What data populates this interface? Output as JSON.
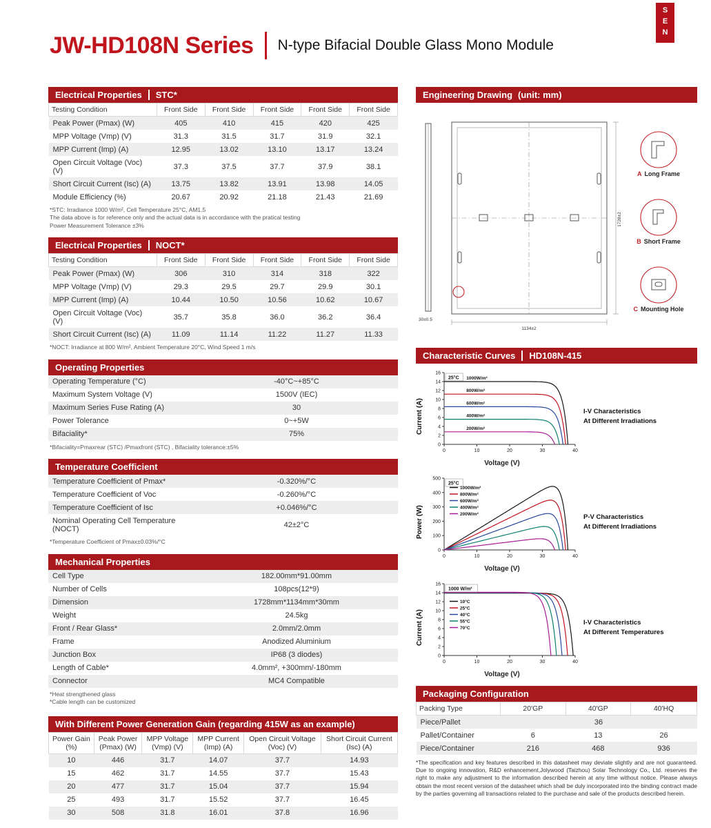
{
  "brand": {
    "corner_tab": "SEN"
  },
  "title": {
    "series": "JW-HD108N Series",
    "subtitle": "N-type Bifacial Double Glass Mono Module"
  },
  "stc": {
    "header": "Electrical Properties",
    "tag": "STC*",
    "table": {
      "cols": [
        "Testing Condition",
        "Front Side",
        "Front Side",
        "Front Side",
        "Front Side",
        "Front Side"
      ],
      "rows": [
        [
          "Peak Power (Pmax) (W)",
          "405",
          "410",
          "415",
          "420",
          "425"
        ],
        [
          "MPP Voltage (Vmp) (V)",
          "31.3",
          "31.5",
          "31.7",
          "31.9",
          "32.1"
        ],
        [
          "MPP Current (Imp) (A)",
          "12.95",
          "13.02",
          "13.10",
          "13.17",
          "13.24"
        ],
        [
          "Open Circuit Voltage (Voc) (V)",
          "37.3",
          "37.5",
          "37.7",
          "37.9",
          "38.1"
        ],
        [
          "Short Circuit Current (Isc) (A)",
          "13.75",
          "13.82",
          "13.91",
          "13.98",
          "14.05"
        ],
        [
          "Module Efficiency (%)",
          "20.67",
          "20.92",
          "21.18",
          "21.43",
          "21.69"
        ]
      ]
    },
    "footnotes": [
      "*STC: Irradiance 1000 W/m², Cell Temperature 25°C, AM1.5",
      "The data above is for reference only and the actual data is in accordance with the pratical testing",
      "Power Measurement Tolerance ±3%"
    ]
  },
  "noct": {
    "header": "Electrical Properties",
    "tag": "NOCT*",
    "table": {
      "cols": [
        "Testing Condition",
        "Front Side",
        "Front Side",
        "Front Side",
        "Front Side",
        "Front Side"
      ],
      "rows": [
        [
          "Peak Power (Pmax) (W)",
          "306",
          "310",
          "314",
          "318",
          "322"
        ],
        [
          "MPP Voltage (Vmp) (V)",
          "29.3",
          "29.5",
          "29.7",
          "29.9",
          "30.1"
        ],
        [
          "MPP Current (Imp) (A)",
          "10.44",
          "10.50",
          "10.56",
          "10.62",
          "10.67"
        ],
        [
          "Open Circuit Voltage (Voc) (V)",
          "35.7",
          "35.8",
          "36.0",
          "36.2",
          "36.4"
        ],
        [
          "Short Circuit Current (Isc) (A)",
          "11.09",
          "11.14",
          "11.22",
          "11.27",
          "11.33"
        ]
      ]
    },
    "footnotes": [
      "*NOCT: Irradiance at 800 W/m², Ambient Temperature 20°C, Wind Speed 1 m/s"
    ]
  },
  "operating": {
    "header": "Operating Properties",
    "table": {
      "rows": [
        [
          "Operating Temperature (°C)",
          "-40°C~+85°C"
        ],
        [
          "Maximum System Voltage (V)",
          "1500V (IEC)"
        ],
        [
          "Maximum Series Fuse Rating (A)",
          "30"
        ],
        [
          "Power Tolerance",
          "0~+5W"
        ],
        [
          "Bifaciality*",
          "75%"
        ]
      ]
    },
    "footnotes": [
      "*Bifaciality=Pmaxrear (STC) /Pmaxfront (STC) ,  Bifaciality tolerance:±5%"
    ]
  },
  "temp_coeff": {
    "header": "Temperature Coefficient",
    "table": {
      "rows": [
        [
          "Temperature Coefficient of Pmax*",
          "-0.320%/°C"
        ],
        [
          "Temperature Coefficient of Voc",
          "-0.260%/°C"
        ],
        [
          "Temperature Coefficient of Isc",
          "+0.046%/°C"
        ],
        [
          "Nominal Operating Cell Temperature (NOCT)",
          "42±2°C"
        ]
      ]
    },
    "footnotes": [
      "*Temperature Coefficient of Pmax±0.03%/°C"
    ]
  },
  "mechanical": {
    "header": "Mechanical Properties",
    "table": {
      "rows": [
        [
          "Cell Type",
          "182.00mm*91.00mm"
        ],
        [
          "Number of Cells",
          "108pcs(12*9)"
        ],
        [
          "Dimension",
          "1728mm*1134mm*30mm"
        ],
        [
          "Weight",
          "24.5kg"
        ],
        [
          "Front / Rear Glass*",
          "2.0mm/2.0mm"
        ],
        [
          "Frame",
          "Anodized Aluminium"
        ],
        [
          "Junction Box",
          "IP68 (3 diodes)"
        ],
        [
          "Length of Cable*",
          "4.0mm², +300mm/-180mm"
        ],
        [
          "Connector",
          "MC4 Compatible"
        ]
      ]
    },
    "footnotes": [
      "*Heat strengthened glass",
      "*Cable length can be customized"
    ]
  },
  "power_gain": {
    "header": "With Different Power Generation Gain (regarding 415W as an example)",
    "table": {
      "cols": [
        "Power Gain\n(%)",
        "Peak Power\n(Pmax) (W)",
        "MPP Voltage\n(Vmp) (V)",
        "MPP Current\n(Imp) (A)",
        "Open Circuit Voltage\n(Voc) (V)",
        "Short Circuit Current\n(Isc) (A)"
      ],
      "rows": [
        [
          "10",
          "446",
          "31.7",
          "14.07",
          "37.7",
          "14.93"
        ],
        [
          "15",
          "462",
          "31.7",
          "14.55",
          "37.7",
          "15.43"
        ],
        [
          "20",
          "477",
          "31.7",
          "15.04",
          "37.7",
          "15.94"
        ],
        [
          "25",
          "493",
          "31.7",
          "15.52",
          "37.7",
          "16.45"
        ],
        [
          "30",
          "508",
          "31.8",
          "16.01",
          "37.8",
          "16.96"
        ]
      ]
    }
  },
  "drawing": {
    "header": "Engineering Drawing",
    "tag": "(unit: mm)",
    "dim_height": "1728±2",
    "dim_width": "1134±2",
    "dim_depth": "30±0.5",
    "details": [
      {
        "letter": "A",
        "text": "Long Frame"
      },
      {
        "letter": "B",
        "text": "Short Frame"
      },
      {
        "letter": "C",
        "text": "Mounting Hole"
      }
    ]
  },
  "curves": {
    "header": "Characteristic Curves",
    "tag": "HD108N-415",
    "charts": [
      {
        "type": "iv",
        "title": "I-V Characteristics At Different Irradiations",
        "side1": "I-V Characteristics",
        "side2": "At Different Irradiations",
        "xlabel": "Voltage (V)",
        "ylabel": "Current (A)",
        "xmax": 40,
        "xstep": 10,
        "ymax": 16,
        "ystep": 2,
        "corner": "25°C",
        "legend": "curve",
        "legend_y": 16,
        "series": [
          {
            "label": "1000W/m²",
            "color": "#151515",
            "isc": 14.0,
            "voc": 37.8
          },
          {
            "label": "800W/m²",
            "color": "#c1121f",
            "isc": 11.2,
            "voc": 37.1
          },
          {
            "label": "600W/m²",
            "color": "#27489d",
            "isc": 8.4,
            "voc": 36.3
          },
          {
            "label": "400W/m²",
            "color": "#0b7f6e",
            "isc": 5.6,
            "voc": 35.2
          },
          {
            "label": "200W/m²",
            "color": "#a81a96",
            "isc": 2.8,
            "voc": 33.8
          }
        ]
      },
      {
        "type": "pv",
        "title": "P-V Characteristics At Different Irradiations",
        "side1": "P-V Characteristics",
        "side2": "At Different Irradiations",
        "xlabel": "Voltage (V)",
        "ylabel": "Power (W)",
        "xmax": 40,
        "xstep": 10,
        "ymax": 500,
        "ystep": 100,
        "corner": "25°C",
        "legend": "swatch",
        "legend_y": 16,
        "series": [
          {
            "label": "1000W/m²",
            "color": "#151515",
            "isc": 14.0,
            "voc": 37.8
          },
          {
            "label": "800W/m²",
            "color": "#c1121f",
            "isc": 11.2,
            "voc": 37.1
          },
          {
            "label": "600W/m²",
            "color": "#27489d",
            "isc": 8.4,
            "voc": 36.3
          },
          {
            "label": "400W/m²",
            "color": "#0b7f6e",
            "isc": 5.6,
            "voc": 35.2
          },
          {
            "label": "200W/m²",
            "color": "#a81a96",
            "isc": 2.8,
            "voc": 33.8
          }
        ]
      },
      {
        "type": "iv",
        "title": "I-V Characteristics At Different Temperatures",
        "side1": "I-V Characteristics",
        "side2": "At Different Temperatures",
        "xlabel": "Voltage (V)",
        "ylabel": "Current (A)",
        "xmax": 40,
        "xstep": 10,
        "ymax": 16,
        "ystep": 2,
        "corner": "1000 W/m²",
        "legend": "swatch",
        "legend_y": 28,
        "series": [
          {
            "label": "10°C",
            "color": "#151515",
            "isc": 13.9,
            "voc": 39.4
          },
          {
            "label": "25°C",
            "color": "#c1121f",
            "isc": 13.95,
            "voc": 37.7
          },
          {
            "label": "40°C",
            "color": "#27489d",
            "isc": 14.0,
            "voc": 36.0
          },
          {
            "label": "55°C",
            "color": "#0b7f6e",
            "isc": 14.05,
            "voc": 34.3
          },
          {
            "label": "70°C",
            "color": "#a81a96",
            "isc": 14.1,
            "voc": 32.6
          }
        ]
      }
    ]
  },
  "packaging": {
    "header": "Packaging Configuration",
    "table": {
      "cols": [
        "Packing Type",
        "20'GP",
        "40'GP",
        "40'HQ"
      ],
      "rows": [
        [
          "Piece/Pallet",
          {
            "text": "36",
            "span": 3
          }
        ],
        [
          "Pallet/Container",
          "6",
          "13",
          "26"
        ],
        [
          "Piece/Container",
          "216",
          "468",
          "936"
        ]
      ]
    },
    "disclaimer": "*The specification and key features described in this datasheet may deviate slightly and are not guaranteed. Due to ongoing innovation, R&D enhancement,Jolywood (Taizhou) Solar Technology Co., Ltd. reserves the right to make any adjustment to the information described herein at any time without notice. Please always obtain the most recent version of the datasheet which shall be duly incorporated into the binding contract made by the parties governing all transactions related to the purchase and sale of the products described herein."
  }
}
